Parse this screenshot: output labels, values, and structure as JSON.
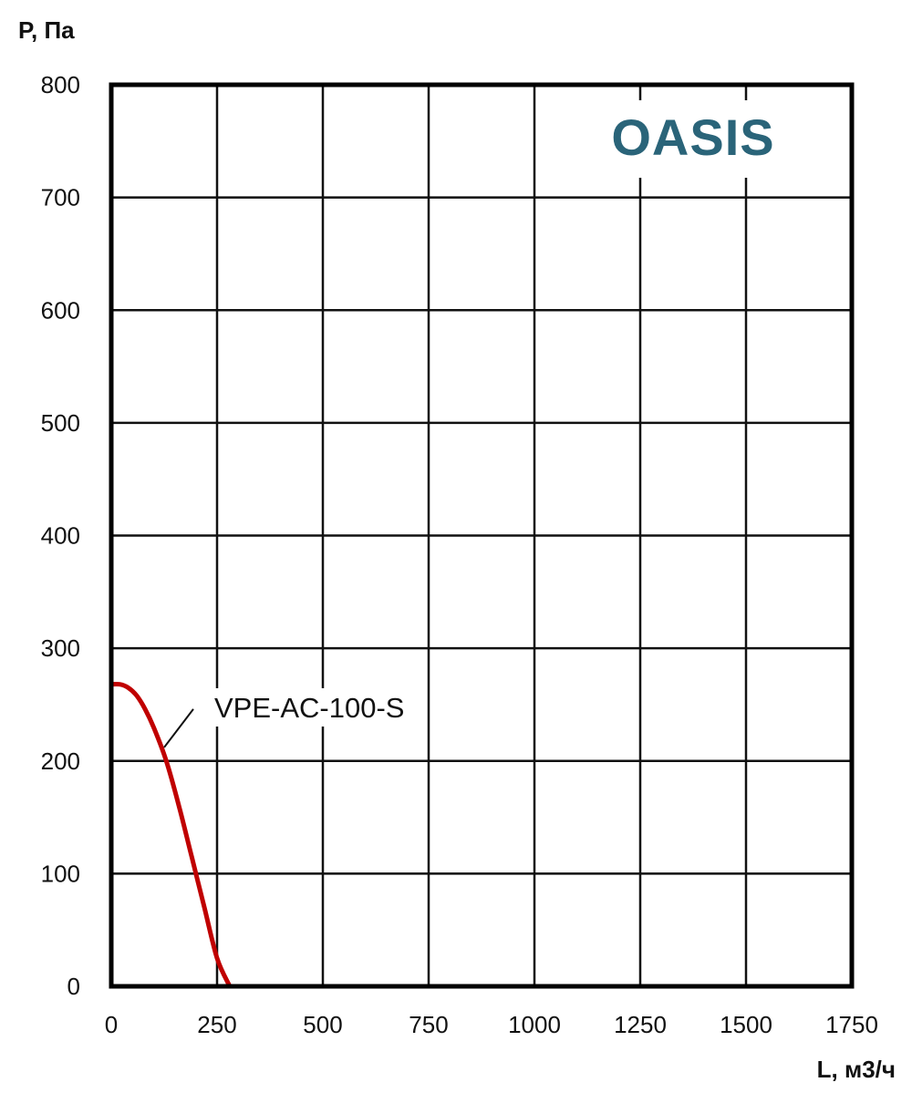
{
  "logo": {
    "text": "OASIS",
    "color": "#2a6479"
  },
  "chart_data": {
    "type": "line",
    "title": "",
    "xlabel": "L, м3/ч",
    "ylabel": "P, Па",
    "xlim": [
      0,
      1750
    ],
    "ylim": [
      0,
      800
    ],
    "xticks": [
      "0",
      "250",
      "500",
      "750",
      "1000",
      "1250",
      "1500",
      "1750"
    ],
    "yticks": [
      "0",
      "100",
      "200",
      "300",
      "400",
      "500",
      "600",
      "700",
      "800"
    ],
    "grid": true,
    "series": [
      {
        "name": "VPE-AC-100-S",
        "color": "#c00000",
        "x": [
          0,
          20,
          40,
          60,
          80,
          100,
          130,
          160,
          190,
          220,
          250,
          280
        ],
        "y": [
          268,
          268,
          265,
          258,
          246,
          230,
          200,
          160,
          115,
          70,
          25,
          0
        ]
      }
    ],
    "annotations": [
      {
        "text": "VPE-AC-100-S",
        "series": "VPE-AC-100-S",
        "x": 125,
        "y": 212
      }
    ]
  }
}
